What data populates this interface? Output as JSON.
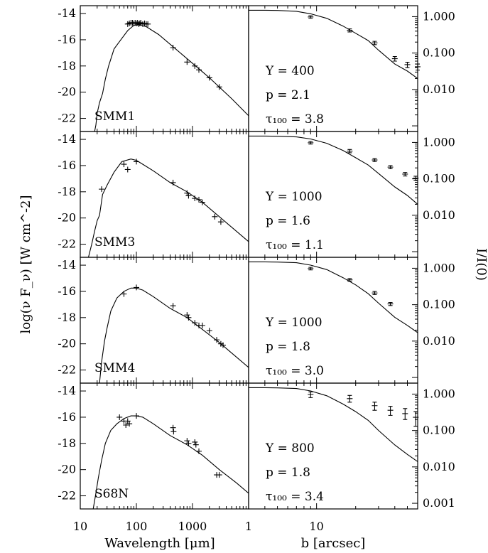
{
  "figure": {
    "left_ylabel": "log(ν F_ν) [W cm^-2]",
    "right_ylabel": "I/I(0)",
    "left_xlabel": "Wavelength [μm]",
    "right_xlabel": "b [arcsec]"
  },
  "chart_data": [
    {
      "type": "scatter",
      "panel": "SED",
      "label": "SMM1",
      "xscale": "log",
      "xlim": [
        10,
        10000
      ],
      "ylim": [
        -23,
        -13.4
      ],
      "x_ticklabels": [
        "10",
        "100",
        "1000",
        "1"
      ],
      "y_ticklabels": [
        "-14",
        "-16",
        "-18",
        "-20",
        "-22"
      ],
      "model": {
        "x": [
          18,
          19,
          20,
          22,
          25,
          28,
          32,
          40,
          55,
          70,
          90,
          110,
          150,
          250,
          500,
          1000,
          2000,
          5000,
          10000
        ],
        "y": [
          -23,
          -22.5,
          -21.6,
          -20.8,
          -20.1,
          -19.0,
          -18.0,
          -16.7,
          -15.9,
          -15.3,
          -14.9,
          -14.85,
          -15.0,
          -15.6,
          -16.7,
          -17.8,
          -18.9,
          -20.5,
          -21.8
        ]
      },
      "points": {
        "x": [
          70,
          75,
          80,
          85,
          90,
          95,
          100,
          105,
          110,
          115,
          120,
          130,
          140,
          150,
          160,
          450,
          800,
          1100,
          1300,
          2000,
          3000
        ],
        "y": [
          -14.8,
          -14.75,
          -14.7,
          -14.7,
          -14.75,
          -14.7,
          -14.75,
          -14.7,
          -14.8,
          -14.75,
          -14.7,
          -14.8,
          -14.75,
          -14.8,
          -14.8,
          -16.6,
          -17.7,
          -18.0,
          -18.3,
          -18.9,
          -19.6
        ]
      }
    },
    {
      "type": "scatter",
      "panel": "profile",
      "xscale": "log",
      "yscale": "log",
      "xlim": [
        3,
        60
      ],
      "ylim": [
        0.0007,
        2.0
      ],
      "x_ticklabels": [
        "10"
      ],
      "y_ticklabels": [
        "1.000",
        "0.100",
        "0.010"
      ],
      "params": {
        "Y": "Y = 400",
        "p": "p = 2.1",
        "tau": "τ₁₀₀ = 3.8"
      },
      "model": {
        "b": [
          3,
          4,
          5,
          7,
          9,
          12,
          16,
          20,
          25,
          30,
          40,
          50,
          60
        ],
        "I": [
          1.5,
          1.5,
          1.48,
          1.4,
          1.2,
          0.9,
          0.55,
          0.35,
          0.22,
          0.12,
          0.05,
          0.032,
          0.02
        ]
      },
      "points": {
        "b": [
          9,
          18,
          28,
          40,
          50,
          60
        ],
        "I": [
          0.98,
          0.42,
          0.19,
          0.07,
          0.048,
          0.042
        ],
        "err_lo": [
          0.9,
          0.38,
          0.17,
          0.06,
          0.04,
          0.034
        ],
        "err_hi": [
          1.06,
          0.46,
          0.21,
          0.08,
          0.056,
          0.05
        ]
      }
    },
    {
      "type": "scatter",
      "panel": "SED",
      "label": "SMM3",
      "xscale": "log",
      "xlim": [
        10,
        10000
      ],
      "ylim": [
        -23,
        -13.4
      ],
      "x_ticklabels": [
        "10",
        "100",
        "1000",
        "1"
      ],
      "y_ticklabels": [
        "-14",
        "-16",
        "-18",
        "-20",
        "-22"
      ],
      "model": {
        "x": [
          14,
          16,
          18,
          20,
          22,
          25,
          30,
          40,
          55,
          80,
          100,
          130,
          200,
          400,
          800,
          1500,
          3000,
          6000,
          10000
        ],
        "y": [
          -23,
          -22.0,
          -21.0,
          -20.2,
          -19.8,
          -18.2,
          -17.5,
          -16.5,
          -15.7,
          -15.5,
          -15.6,
          -15.9,
          -16.4,
          -17.3,
          -18.0,
          -18.8,
          -19.9,
          -21.0,
          -21.8
        ]
      },
      "points": {
        "x": [
          24,
          60,
          70,
          100,
          450,
          800,
          850,
          1100,
          1300,
          1500,
          2500,
          3200
        ],
        "y": [
          -17.8,
          -15.9,
          -16.3,
          -15.7,
          -17.3,
          -18.1,
          -18.3,
          -18.5,
          -18.6,
          -18.8,
          -19.9,
          -20.3
        ]
      }
    },
    {
      "type": "scatter",
      "panel": "profile",
      "xscale": "log",
      "yscale": "log",
      "xlim": [
        3,
        60
      ],
      "ylim": [
        0.0007,
        2.0
      ],
      "x_ticklabels": [
        "10"
      ],
      "y_ticklabels": [
        "1.000",
        "0.100",
        "0.010"
      ],
      "params": {
        "Y": "Y = 1000",
        "p": "p = 1.6",
        "tau": "τ₁₀₀ = 1.1"
      },
      "model": {
        "b": [
          3,
          4,
          5,
          7,
          9,
          12,
          16,
          20,
          25,
          30,
          40,
          50,
          60
        ],
        "I": [
          1.5,
          1.5,
          1.48,
          1.42,
          1.25,
          0.95,
          0.6,
          0.38,
          0.24,
          0.14,
          0.06,
          0.035,
          0.02
        ]
      },
      "points": {
        "b": [
          9,
          18,
          28,
          37,
          48,
          58
        ],
        "I": [
          0.98,
          0.58,
          0.33,
          0.21,
          0.135,
          0.105
        ],
        "err_lo": [
          0.9,
          0.52,
          0.3,
          0.19,
          0.12,
          0.092
        ],
        "err_hi": [
          1.06,
          0.64,
          0.36,
          0.23,
          0.15,
          0.118
        ]
      }
    },
    {
      "type": "scatter",
      "panel": "SED",
      "label": "SMM4",
      "xscale": "log",
      "xlim": [
        10,
        10000
      ],
      "ylim": [
        -23,
        -13.4
      ],
      "x_ticklabels": [
        "10",
        "100",
        "1000",
        "1"
      ],
      "y_ticklabels": [
        "-14",
        "-16",
        "-18",
        "-20",
        "-22"
      ],
      "model": {
        "x": [
          22,
          24,
          27,
          30,
          35,
          45,
          60,
          80,
          100,
          130,
          200,
          400,
          800,
          1500,
          3000,
          6000,
          10000
        ],
        "y": [
          -23,
          -21.4,
          -19.8,
          -18.8,
          -17.5,
          -16.5,
          -16.0,
          -15.75,
          -15.75,
          -15.9,
          -16.4,
          -17.3,
          -18.0,
          -18.9,
          -19.9,
          -21.0,
          -21.8
        ]
      },
      "points": {
        "x": [
          60,
          100,
          450,
          800,
          850,
          1100,
          1300,
          1500,
          2000,
          2700,
          3200,
          3500
        ],
        "y": [
          -16.2,
          -15.7,
          -17.1,
          -17.8,
          -18.0,
          -18.4,
          -18.6,
          -18.6,
          -19.0,
          -19.7,
          -20.0,
          -20.1
        ]
      }
    },
    {
      "type": "scatter",
      "panel": "profile",
      "xscale": "log",
      "yscale": "log",
      "xlim": [
        3,
        60
      ],
      "ylim": [
        0.0007,
        2.0
      ],
      "x_ticklabels": [
        "10"
      ],
      "y_ticklabels": [
        "1.000",
        "0.100",
        "0.010"
      ],
      "params": {
        "Y": "Y = 1000",
        "p": "p = 1.8",
        "tau": "τ₁₀₀ = 3.0"
      },
      "model": {
        "b": [
          3,
          4,
          5,
          7,
          9,
          12,
          16,
          20,
          25,
          30,
          40,
          50,
          60
        ],
        "I": [
          1.5,
          1.5,
          1.48,
          1.42,
          1.22,
          0.92,
          0.55,
          0.35,
          0.2,
          0.11,
          0.045,
          0.027,
          0.017
        ]
      },
      "points": {
        "b": [
          9,
          18,
          28,
          37
        ],
        "I": [
          0.98,
          0.48,
          0.21,
          0.105
        ],
        "err_lo": [
          0.9,
          0.44,
          0.19,
          0.095
        ],
        "err_hi": [
          1.06,
          0.52,
          0.23,
          0.115
        ]
      }
    },
    {
      "type": "scatter",
      "panel": "SED",
      "label": "S68N",
      "xscale": "log",
      "xlim": [
        10,
        10000
      ],
      "ylim": [
        -23,
        -13.4
      ],
      "x_ticklabels": [
        "10",
        "100",
        "1000",
        "1"
      ],
      "y_ticklabels": [
        "-14",
        "-16",
        "-18",
        "-20",
        "-22"
      ],
      "model": {
        "x": [
          17,
          19,
          21,
          24,
          28,
          35,
          45,
          60,
          80,
          100,
          130,
          200,
          400,
          800,
          1500,
          3000,
          6000,
          10000
        ],
        "y": [
          -23,
          -21.8,
          -20.6,
          -19.3,
          -18.0,
          -17.0,
          -16.5,
          -16.1,
          -15.9,
          -15.9,
          -16.0,
          -16.5,
          -17.4,
          -18.1,
          -18.9,
          -20.0,
          -21.0,
          -21.8
        ]
      },
      "points": {
        "x": [
          50,
          60,
          65,
          70,
          75,
          100,
          450,
          460,
          800,
          850,
          1100,
          1150,
          1300,
          2700,
          3000
        ],
        "y": [
          -16.0,
          -16.3,
          -16.6,
          -16.3,
          -16.5,
          -15.9,
          -16.8,
          -17.1,
          -17.8,
          -18.0,
          -17.9,
          -18.1,
          -18.6,
          -20.4,
          -20.4
        ]
      }
    },
    {
      "type": "scatter",
      "panel": "profile",
      "xscale": "log",
      "yscale": "log",
      "xlim": [
        3,
        60
      ],
      "ylim": [
        0.0007,
        2.0
      ],
      "x_ticklabels": [
        "10"
      ],
      "y_ticklabels": [
        "1.000",
        "0.100",
        "0.010",
        "0.001"
      ],
      "params": {
        "Y": "Y = 800",
        "p": "p = 1.8",
        "tau": "τ₁₀₀ = 3.4"
      },
      "model": {
        "b": [
          3,
          4,
          5,
          7,
          9,
          12,
          16,
          20,
          25,
          30,
          40,
          50,
          60
        ],
        "I": [
          1.5,
          1.5,
          1.48,
          1.42,
          1.22,
          0.9,
          0.53,
          0.33,
          0.19,
          0.1,
          0.04,
          0.022,
          0.014
        ]
      },
      "points": {
        "b": [
          9,
          18,
          28,
          37,
          48,
          58
        ],
        "I": [
          0.98,
          0.75,
          0.48,
          0.36,
          0.29,
          0.23
        ],
        "err_lo": [
          0.8,
          0.6,
          0.36,
          0.26,
          0.2,
          0.13
        ],
        "err_hi": [
          1.15,
          0.92,
          0.6,
          0.46,
          0.4,
          0.33
        ]
      }
    }
  ]
}
